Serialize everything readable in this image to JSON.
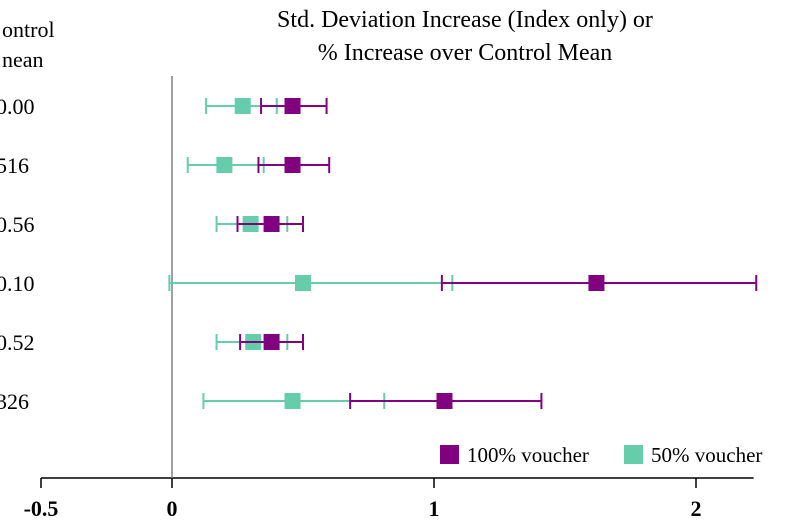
{
  "chart_data": {
    "type": "scatter",
    "variant": "forest-plot-with-error-bars",
    "title_lines": [
      "Std. Deviation Increase (Index only) or",
      "% Increase over Control Mean"
    ],
    "control_header_lines": [
      "ontrol",
      "nean"
    ],
    "rows": [
      {
        "control_mean": "0.00"
      },
      {
        "control_mean": "516"
      },
      {
        "control_mean": "0.56"
      },
      {
        "control_mean": "0.10"
      },
      {
        "control_mean": "0.52"
      },
      {
        "control_mean": "326"
      }
    ],
    "x_ticks": [
      "-0.5",
      "0",
      "1",
      "2"
    ],
    "x_tick_values": [
      -0.5,
      0,
      1,
      2
    ],
    "xlim": [
      -0.5,
      2.22
    ],
    "reference_line_x": 0,
    "grid": false,
    "legend_position": "bottom-right",
    "series": [
      {
        "name": "100% voucher",
        "color": "#800080",
        "points": [
          {
            "est": 0.46,
            "lo": 0.34,
            "hi": 0.59
          },
          {
            "est": 0.46,
            "lo": 0.33,
            "hi": 0.6
          },
          {
            "est": 0.38,
            "lo": 0.25,
            "hi": 0.5
          },
          {
            "est": 1.62,
            "lo": 1.03,
            "hi": 2.23
          },
          {
            "est": 0.38,
            "lo": 0.26,
            "hi": 0.5
          },
          {
            "est": 1.04,
            "lo": 0.68,
            "hi": 1.41
          }
        ]
      },
      {
        "name": "50% voucher",
        "color": "#66cdaa",
        "points": [
          {
            "est": 0.27,
            "lo": 0.13,
            "hi": 0.4
          },
          {
            "est": 0.2,
            "lo": 0.06,
            "hi": 0.35
          },
          {
            "est": 0.3,
            "lo": 0.17,
            "hi": 0.44
          },
          {
            "est": 0.5,
            "lo": -0.01,
            "hi": 1.07
          },
          {
            "est": 0.31,
            "lo": 0.17,
            "hi": 0.44
          },
          {
            "est": 0.46,
            "lo": 0.12,
            "hi": 0.81
          }
        ]
      }
    ]
  }
}
